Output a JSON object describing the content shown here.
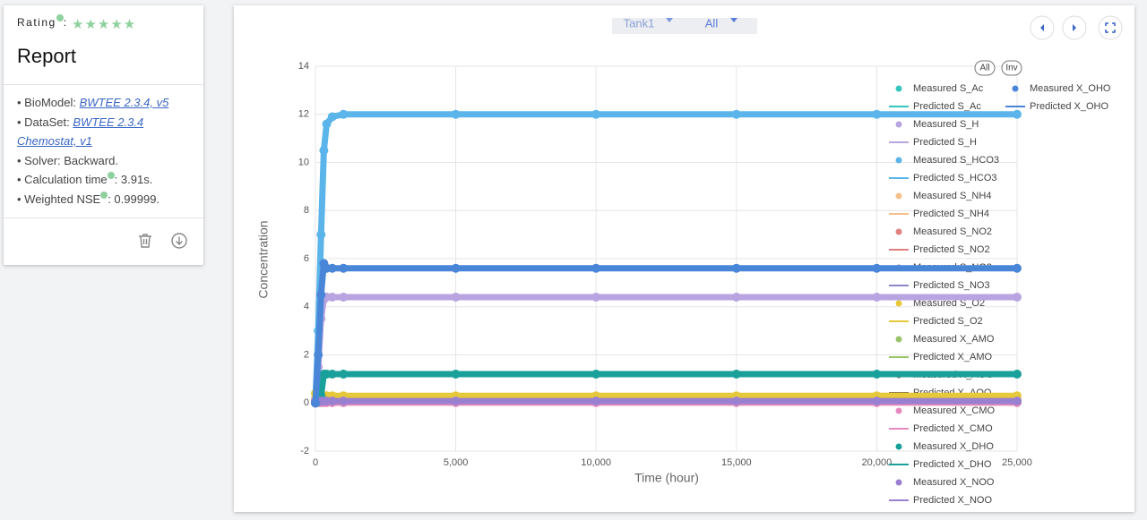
{
  "report": {
    "rating_label": "Rating",
    "rating_suffix": ":",
    "title": "Report",
    "items": [
      {
        "label": "BioModel:",
        "link": "BWTEE 2.3.4, v5"
      },
      {
        "label": "DataSet:",
        "link": "BWTEE 2.3.4 Chemostat, v1"
      },
      {
        "label": "Solver: Backward."
      },
      {
        "label": "Calculation time",
        "value": ": 3.91s."
      },
      {
        "label": "Weighted NSE",
        "value": ": 0.99999."
      }
    ]
  },
  "controls": {
    "tank": "Tank1",
    "filter": "All"
  },
  "chart_data": {
    "type": "line",
    "xlabel": "Time (hour)",
    "ylabel": "Concentration",
    "legend_buttons": [
      "All",
      "Inv"
    ],
    "grid": true,
    "xlim": [
      0,
      25000
    ],
    "xticks": [
      0,
      {
        "value": 5000,
        "label": "5,000"
      },
      {
        "value": 10000,
        "label": "10,000"
      },
      {
        "value": 15000,
        "label": "15,000"
      },
      {
        "value": 20000,
        "label": "20,000"
      },
      {
        "value": 25000,
        "label": "25,000"
      }
    ],
    "ylim": [
      -2,
      14
    ],
    "yticks": [
      -2,
      0,
      2,
      4,
      6,
      8,
      10,
      12,
      14
    ],
    "x": [
      0,
      100,
      200,
      300,
      400,
      600,
      1000,
      5000,
      10000,
      15000,
      20000,
      25000
    ],
    "series": [
      {
        "name": "Measured S_Ac",
        "style": "scatter",
        "color": "#36c6c0",
        "values": [
          0.1,
          0.05,
          0.05,
          0.05,
          0.05,
          0.05,
          0.05,
          0.05,
          0.05,
          0.05,
          0.05,
          0.05
        ]
      },
      {
        "name": "Predicted S_Ac",
        "style": "line",
        "color": "#36c6c0",
        "values": [
          0.1,
          0.05,
          0.05,
          0.05,
          0.05,
          0.05,
          0.05,
          0.05,
          0.05,
          0.05,
          0.05,
          0.05
        ]
      },
      {
        "name": "Measured S_H",
        "style": "scatter",
        "color": "#b8a4e0",
        "values": [
          0,
          1.5,
          3.5,
          4.3,
          4.4,
          4.4,
          4.4,
          4.4,
          4.4,
          4.4,
          4.4,
          4.4
        ]
      },
      {
        "name": "Predicted S_H",
        "style": "line",
        "color": "#b8a4e0",
        "values": [
          0,
          1.5,
          3.5,
          4.3,
          4.4,
          4.4,
          4.4,
          4.4,
          4.4,
          4.4,
          4.4,
          4.4
        ]
      },
      {
        "name": "Measured S_HCO3",
        "style": "scatter",
        "color": "#5bb5ea",
        "values": [
          0,
          3,
          7,
          10.5,
          11.6,
          11.9,
          12,
          12,
          12,
          12,
          12,
          12
        ]
      },
      {
        "name": "Predicted S_HCO3",
        "style": "line",
        "color": "#5bb5ea",
        "values": [
          0,
          3,
          7,
          10.5,
          11.6,
          11.9,
          12,
          12,
          12,
          12,
          12,
          12
        ]
      },
      {
        "name": "Measured S_NH4",
        "style": "scatter",
        "color": "#f5c08a",
        "values": [
          0.2,
          0.1,
          0.05,
          0.02,
          0.02,
          0.02,
          0.02,
          0.02,
          0.02,
          0.02,
          0.02,
          0.02
        ]
      },
      {
        "name": "Predicted S_NH4",
        "style": "line",
        "color": "#f5c08a",
        "values": [
          0.2,
          0.1,
          0.05,
          0.02,
          0.02,
          0.02,
          0.02,
          0.02,
          0.02,
          0.02,
          0.02,
          0.02
        ]
      },
      {
        "name": "Measured S_NO2",
        "style": "scatter",
        "color": "#e08080",
        "values": [
          0,
          0.02,
          0.02,
          0.02,
          0.02,
          0.02,
          0.02,
          0.02,
          0.02,
          0.02,
          0.02,
          0.02
        ]
      },
      {
        "name": "Predicted S_NO2",
        "style": "line",
        "color": "#e08080",
        "values": [
          0,
          0.02,
          0.02,
          0.02,
          0.02,
          0.02,
          0.02,
          0.02,
          0.02,
          0.02,
          0.02,
          0.02
        ]
      },
      {
        "name": "Measured S_NO3",
        "style": "scatter",
        "color": "#8a8ac8",
        "values": [
          0,
          0.05,
          0.1,
          0.1,
          0.1,
          0.1,
          0.1,
          0.1,
          0.1,
          0.1,
          0.1,
          0.1
        ]
      },
      {
        "name": "Predicted S_NO3",
        "style": "line",
        "color": "#8a8ac8",
        "values": [
          0,
          0.05,
          0.1,
          0.1,
          0.1,
          0.1,
          0.1,
          0.1,
          0.1,
          0.1,
          0.1,
          0.1
        ]
      },
      {
        "name": "Measured S_O2",
        "style": "scatter",
        "color": "#e6c83a",
        "values": [
          0.4,
          0.3,
          0.3,
          0.3,
          0.3,
          0.3,
          0.3,
          0.3,
          0.3,
          0.3,
          0.3,
          0.3
        ]
      },
      {
        "name": "Predicted S_O2",
        "style": "line",
        "color": "#e6c83a",
        "values": [
          0.4,
          0.3,
          0.3,
          0.3,
          0.3,
          0.3,
          0.3,
          0.3,
          0.3,
          0.3,
          0.3,
          0.3
        ]
      },
      {
        "name": "Measured X_AMO",
        "style": "scatter",
        "color": "#9bc46a",
        "values": [
          0.05,
          0.05,
          0.05,
          0.05,
          0.05,
          0.05,
          0.05,
          0.05,
          0.05,
          0.05,
          0.05,
          0.05
        ]
      },
      {
        "name": "Predicted X_AMO",
        "style": "line",
        "color": "#9bc46a",
        "values": [
          0.05,
          0.05,
          0.05,
          0.05,
          0.05,
          0.05,
          0.05,
          0.05,
          0.05,
          0.05,
          0.05,
          0.05
        ]
      },
      {
        "name": "Measured X_AOO",
        "style": "scatter",
        "color": "#7a6a50",
        "values": [
          0.05,
          0.05,
          0.05,
          0.05,
          0.05,
          0.05,
          0.05,
          0.05,
          0.05,
          0.05,
          0.05,
          0.05
        ]
      },
      {
        "name": "Predicted X_AOO",
        "style": "line",
        "color": "#7a6a50",
        "values": [
          0.05,
          0.05,
          0.05,
          0.05,
          0.05,
          0.05,
          0.05,
          0.05,
          0.05,
          0.05,
          0.05,
          0.05
        ]
      },
      {
        "name": "Measured X_CMO",
        "style": "scatter",
        "color": "#e88ac0",
        "values": [
          0.02,
          0.02,
          0.02,
          0.02,
          0.02,
          0.02,
          0.02,
          0.02,
          0.02,
          0.02,
          0.02,
          0.02
        ]
      },
      {
        "name": "Predicted X_CMO",
        "style": "line",
        "color": "#e88ac0",
        "values": [
          0.02,
          0.02,
          0.02,
          0.02,
          0.02,
          0.02,
          0.02,
          0.02,
          0.02,
          0.02,
          0.02,
          0.02
        ]
      },
      {
        "name": "Measured X_DHO",
        "style": "scatter",
        "color": "#1aa09a",
        "values": [
          0,
          0.05,
          0.3,
          1.2,
          1.2,
          1.2,
          1.2,
          1.2,
          1.2,
          1.2,
          1.2,
          1.2
        ]
      },
      {
        "name": "Predicted X_DHO",
        "style": "line",
        "color": "#1aa09a",
        "values": [
          0,
          0.05,
          0.3,
          1.2,
          1.2,
          1.2,
          1.2,
          1.2,
          1.2,
          1.2,
          1.2,
          1.2
        ]
      },
      {
        "name": "Measured X_NOO",
        "style": "scatter",
        "color": "#9a80d0",
        "values": [
          0.08,
          0.08,
          0.08,
          0.08,
          0.08,
          0.08,
          0.08,
          0.08,
          0.08,
          0.08,
          0.08,
          0.08
        ]
      },
      {
        "name": "Predicted X_NOO",
        "style": "line",
        "color": "#9a80d0",
        "values": [
          0.08,
          0.08,
          0.08,
          0.08,
          0.08,
          0.08,
          0.08,
          0.08,
          0.08,
          0.08,
          0.08,
          0.08
        ]
      },
      {
        "name": "Measured X_OHO",
        "style": "scatter",
        "color": "#4a86d8",
        "values": [
          0,
          2,
          4.5,
          5.8,
          5.6,
          5.6,
          5.6,
          5.6,
          5.6,
          5.6,
          5.6,
          5.6
        ]
      },
      {
        "name": "Predicted X_OHO",
        "style": "line",
        "color": "#4a86d8",
        "values": [
          0,
          2,
          4.5,
          5.8,
          5.6,
          5.6,
          5.6,
          5.6,
          5.6,
          5.6,
          5.6,
          5.6
        ]
      }
    ]
  }
}
